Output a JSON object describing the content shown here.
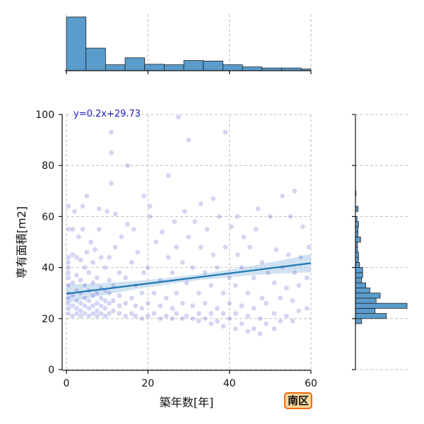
{
  "chart_data": {
    "type": "scatter",
    "title": "",
    "xlabel": "築年数[年]",
    "ylabel": "専有面積[m2]",
    "xlim": [
      0,
      60
    ],
    "ylim": [
      0,
      100
    ],
    "x_ticks": [
      0,
      20,
      40,
      60
    ],
    "y_ticks": [
      0,
      20,
      40,
      60,
      80,
      100
    ],
    "grid": true,
    "colors": {
      "points": "#3a3ac8",
      "regression": "#1f77b4",
      "confidence_band": "#a9cbe6",
      "histogram": "#5a9ccc",
      "grid": "#b0b0b0",
      "equation": "#1f1fbf"
    },
    "regression": {
      "equation_label": "y=0.2x+29.73",
      "slope": 0.2,
      "intercept": 29.73,
      "x_range": [
        0,
        60
      ]
    },
    "region_label": "南区",
    "marginal_x_histogram": {
      "bin_edges": [
        0,
        4.8,
        9.6,
        14.4,
        19.2,
        24,
        28.8,
        33.6,
        38.4,
        43.2,
        48,
        52.8,
        57.6,
        60
      ],
      "relative_heights": [
        1.0,
        0.42,
        0.11,
        0.24,
        0.12,
        0.11,
        0.19,
        0.18,
        0.11,
        0.07,
        0.05,
        0.05,
        0.03
      ]
    },
    "marginal_y_histogram": {
      "bin_edges": [
        18,
        20,
        22,
        24,
        26,
        28,
        30,
        32,
        34,
        36,
        38,
        40,
        42,
        44,
        46,
        48,
        50,
        52,
        54,
        56,
        58,
        60,
        62,
        64,
        66,
        68,
        70
      ],
      "relative_heights": [
        0.12,
        0.6,
        0.38,
        1.0,
        0.4,
        0.48,
        0.28,
        0.2,
        0.12,
        0.14,
        0.14,
        0.08,
        0.06,
        0.06,
        0.04,
        0.04,
        0.1,
        0.05,
        0.05,
        0.06,
        0.03,
        0.0,
        0.05,
        0.0,
        0.0,
        0.01
      ]
    },
    "points": [
      [
        0.5,
        22
      ],
      [
        0.5,
        24
      ],
      [
        0.5,
        26
      ],
      [
        0.5,
        28
      ],
      [
        0.5,
        30
      ],
      [
        0.5,
        33
      ],
      [
        0.5,
        36
      ],
      [
        0.5,
        38
      ],
      [
        0.5,
        40
      ],
      [
        0.5,
        42
      ],
      [
        0.5,
        44
      ],
      [
        0.5,
        55
      ],
      [
        0.5,
        64
      ],
      [
        1.5,
        21
      ],
      [
        1.5,
        25
      ],
      [
        1.5,
        29
      ],
      [
        1.5,
        34
      ],
      [
        1.5,
        45
      ],
      [
        1.5,
        55
      ],
      [
        2,
        62
      ],
      [
        2.5,
        22
      ],
      [
        2.5,
        24
      ],
      [
        2.5,
        27
      ],
      [
        2.5,
        31
      ],
      [
        2.5,
        37
      ],
      [
        2.5,
        44
      ],
      [
        3,
        52
      ],
      [
        3.5,
        21
      ],
      [
        3.5,
        23
      ],
      [
        3.5,
        26
      ],
      [
        3.5,
        30
      ],
      [
        3.5,
        35
      ],
      [
        3.5,
        43
      ],
      [
        4,
        55
      ],
      [
        4,
        64
      ],
      [
        4.5,
        22
      ],
      [
        4.5,
        25
      ],
      [
        4.5,
        28
      ],
      [
        4.5,
        33
      ],
      [
        4.5,
        40
      ],
      [
        5,
        46
      ],
      [
        5,
        68
      ],
      [
        5.5,
        21
      ],
      [
        5.5,
        24
      ],
      [
        5.5,
        27
      ],
      [
        5.5,
        31
      ],
      [
        5.5,
        38
      ],
      [
        6,
        50
      ],
      [
        6.5,
        22
      ],
      [
        6.5,
        25
      ],
      [
        6.5,
        29
      ],
      [
        6.5,
        34
      ],
      [
        6.5,
        42
      ],
      [
        7,
        47
      ],
      [
        7.5,
        21
      ],
      [
        7.5,
        23
      ],
      [
        7.5,
        26
      ],
      [
        7.5,
        30
      ],
      [
        7.5,
        36
      ],
      [
        8,
        55
      ],
      [
        8,
        63
      ],
      [
        8.5,
        22
      ],
      [
        8.5,
        25
      ],
      [
        8.5,
        28
      ],
      [
        8.5,
        32
      ],
      [
        8.5,
        44
      ],
      [
        9.5,
        21
      ],
      [
        9.5,
        24
      ],
      [
        9.5,
        27
      ],
      [
        9.5,
        31
      ],
      [
        9.5,
        40
      ],
      [
        10,
        62
      ],
      [
        10.5,
        22
      ],
      [
        10.5,
        26
      ],
      [
        10.5,
        30
      ],
      [
        10.5,
        35
      ],
      [
        10.5,
        44
      ],
      [
        11,
        73
      ],
      [
        11,
        85
      ],
      [
        11,
        93
      ],
      [
        11.5,
        23
      ],
      [
        11.5,
        27
      ],
      [
        11.5,
        33
      ],
      [
        12,
        48
      ],
      [
        12,
        61
      ],
      [
        13,
        22
      ],
      [
        13,
        25
      ],
      [
        13,
        29
      ],
      [
        13,
        38
      ],
      [
        13.5,
        52
      ],
      [
        14.5,
        21
      ],
      [
        14.5,
        26
      ],
      [
        14.5,
        36
      ],
      [
        15,
        57
      ],
      [
        15,
        80
      ],
      [
        16,
        22
      ],
      [
        16,
        28
      ],
      [
        16,
        42
      ],
      [
        16.5,
        55
      ],
      [
        17,
        21
      ],
      [
        17,
        25
      ],
      [
        17,
        33
      ],
      [
        17.5,
        46
      ],
      [
        18.5,
        20
      ],
      [
        18.5,
        24
      ],
      [
        18.5,
        30
      ],
      [
        19,
        38
      ],
      [
        19,
        68
      ],
      [
        20,
        21
      ],
      [
        20,
        26
      ],
      [
        20,
        40
      ],
      [
        20.5,
        60
      ],
      [
        20.5,
        64
      ],
      [
        21.5,
        22
      ],
      [
        21.5,
        30
      ],
      [
        22,
        50
      ],
      [
        23,
        20
      ],
      [
        23,
        25
      ],
      [
        23,
        35
      ],
      [
        23.5,
        54
      ],
      [
        24.5,
        21
      ],
      [
        24.5,
        28
      ],
      [
        25,
        44
      ],
      [
        25,
        76
      ],
      [
        26,
        20
      ],
      [
        26,
        24
      ],
      [
        26,
        38
      ],
      [
        26.5,
        58
      ],
      [
        27,
        22
      ],
      [
        27,
        30
      ],
      [
        27,
        48
      ],
      [
        27.5,
        99
      ],
      [
        28.5,
        20
      ],
      [
        28.5,
        26
      ],
      [
        28.5,
        42
      ],
      [
        29,
        62
      ],
      [
        29.5,
        21
      ],
      [
        29.5,
        34
      ],
      [
        30,
        52
      ],
      [
        30,
        90
      ],
      [
        31,
        20
      ],
      [
        31,
        25
      ],
      [
        31,
        40
      ],
      [
        31.5,
        58
      ],
      [
        32.5,
        19
      ],
      [
        32.5,
        22
      ],
      [
        32.5,
        30
      ],
      [
        33,
        48
      ],
      [
        33,
        65
      ],
      [
        34,
        20
      ],
      [
        34,
        26
      ],
      [
        34,
        38
      ],
      [
        34.5,
        55
      ],
      [
        35.5,
        18
      ],
      [
        35.5,
        22
      ],
      [
        35.5,
        33
      ],
      [
        36,
        45
      ],
      [
        36,
        67
      ],
      [
        37,
        19
      ],
      [
        37,
        24
      ],
      [
        37,
        40
      ],
      [
        37.5,
        60
      ],
      [
        38.5,
        17
      ],
      [
        38.5,
        22
      ],
      [
        38.5,
        30
      ],
      [
        39,
        48
      ],
      [
        39,
        93
      ],
      [
        40,
        20
      ],
      [
        40,
        26
      ],
      [
        40,
        36
      ],
      [
        40.5,
        56
      ],
      [
        41.5,
        16
      ],
      [
        41.5,
        22
      ],
      [
        41.5,
        33
      ],
      [
        42,
        45
      ],
      [
        42,
        60
      ],
      [
        43,
        18
      ],
      [
        43,
        25
      ],
      [
        43,
        40
      ],
      [
        43.5,
        52
      ],
      [
        44.5,
        15
      ],
      [
        44.5,
        21
      ],
      [
        44.5,
        30
      ],
      [
        45,
        48
      ],
      [
        46,
        16
      ],
      [
        46,
        24
      ],
      [
        46,
        36
      ],
      [
        46.5,
        55
      ],
      [
        47,
        63
      ],
      [
        47.5,
        14
      ],
      [
        47.5,
        20
      ],
      [
        48,
        28
      ],
      [
        48,
        42
      ],
      [
        49,
        18
      ],
      [
        49,
        26
      ],
      [
        49.5,
        38
      ],
      [
        50,
        60
      ],
      [
        51,
        16
      ],
      [
        51,
        22
      ],
      [
        51,
        34
      ],
      [
        51.5,
        47
      ],
      [
        52.5,
        19
      ],
      [
        52.5,
        28
      ],
      [
        53,
        40
      ],
      [
        53,
        68
      ],
      [
        54,
        21
      ],
      [
        54,
        32
      ],
      [
        54.5,
        45
      ],
      [
        55,
        60
      ],
      [
        55.5,
        19
      ],
      [
        55.5,
        27
      ],
      [
        56,
        38
      ],
      [
        56,
        70
      ],
      [
        57,
        23
      ],
      [
        57,
        33
      ],
      [
        57.5,
        44
      ],
      [
        58,
        56
      ],
      [
        59,
        24
      ],
      [
        59,
        36
      ],
      [
        59.5,
        48
      ]
    ]
  }
}
